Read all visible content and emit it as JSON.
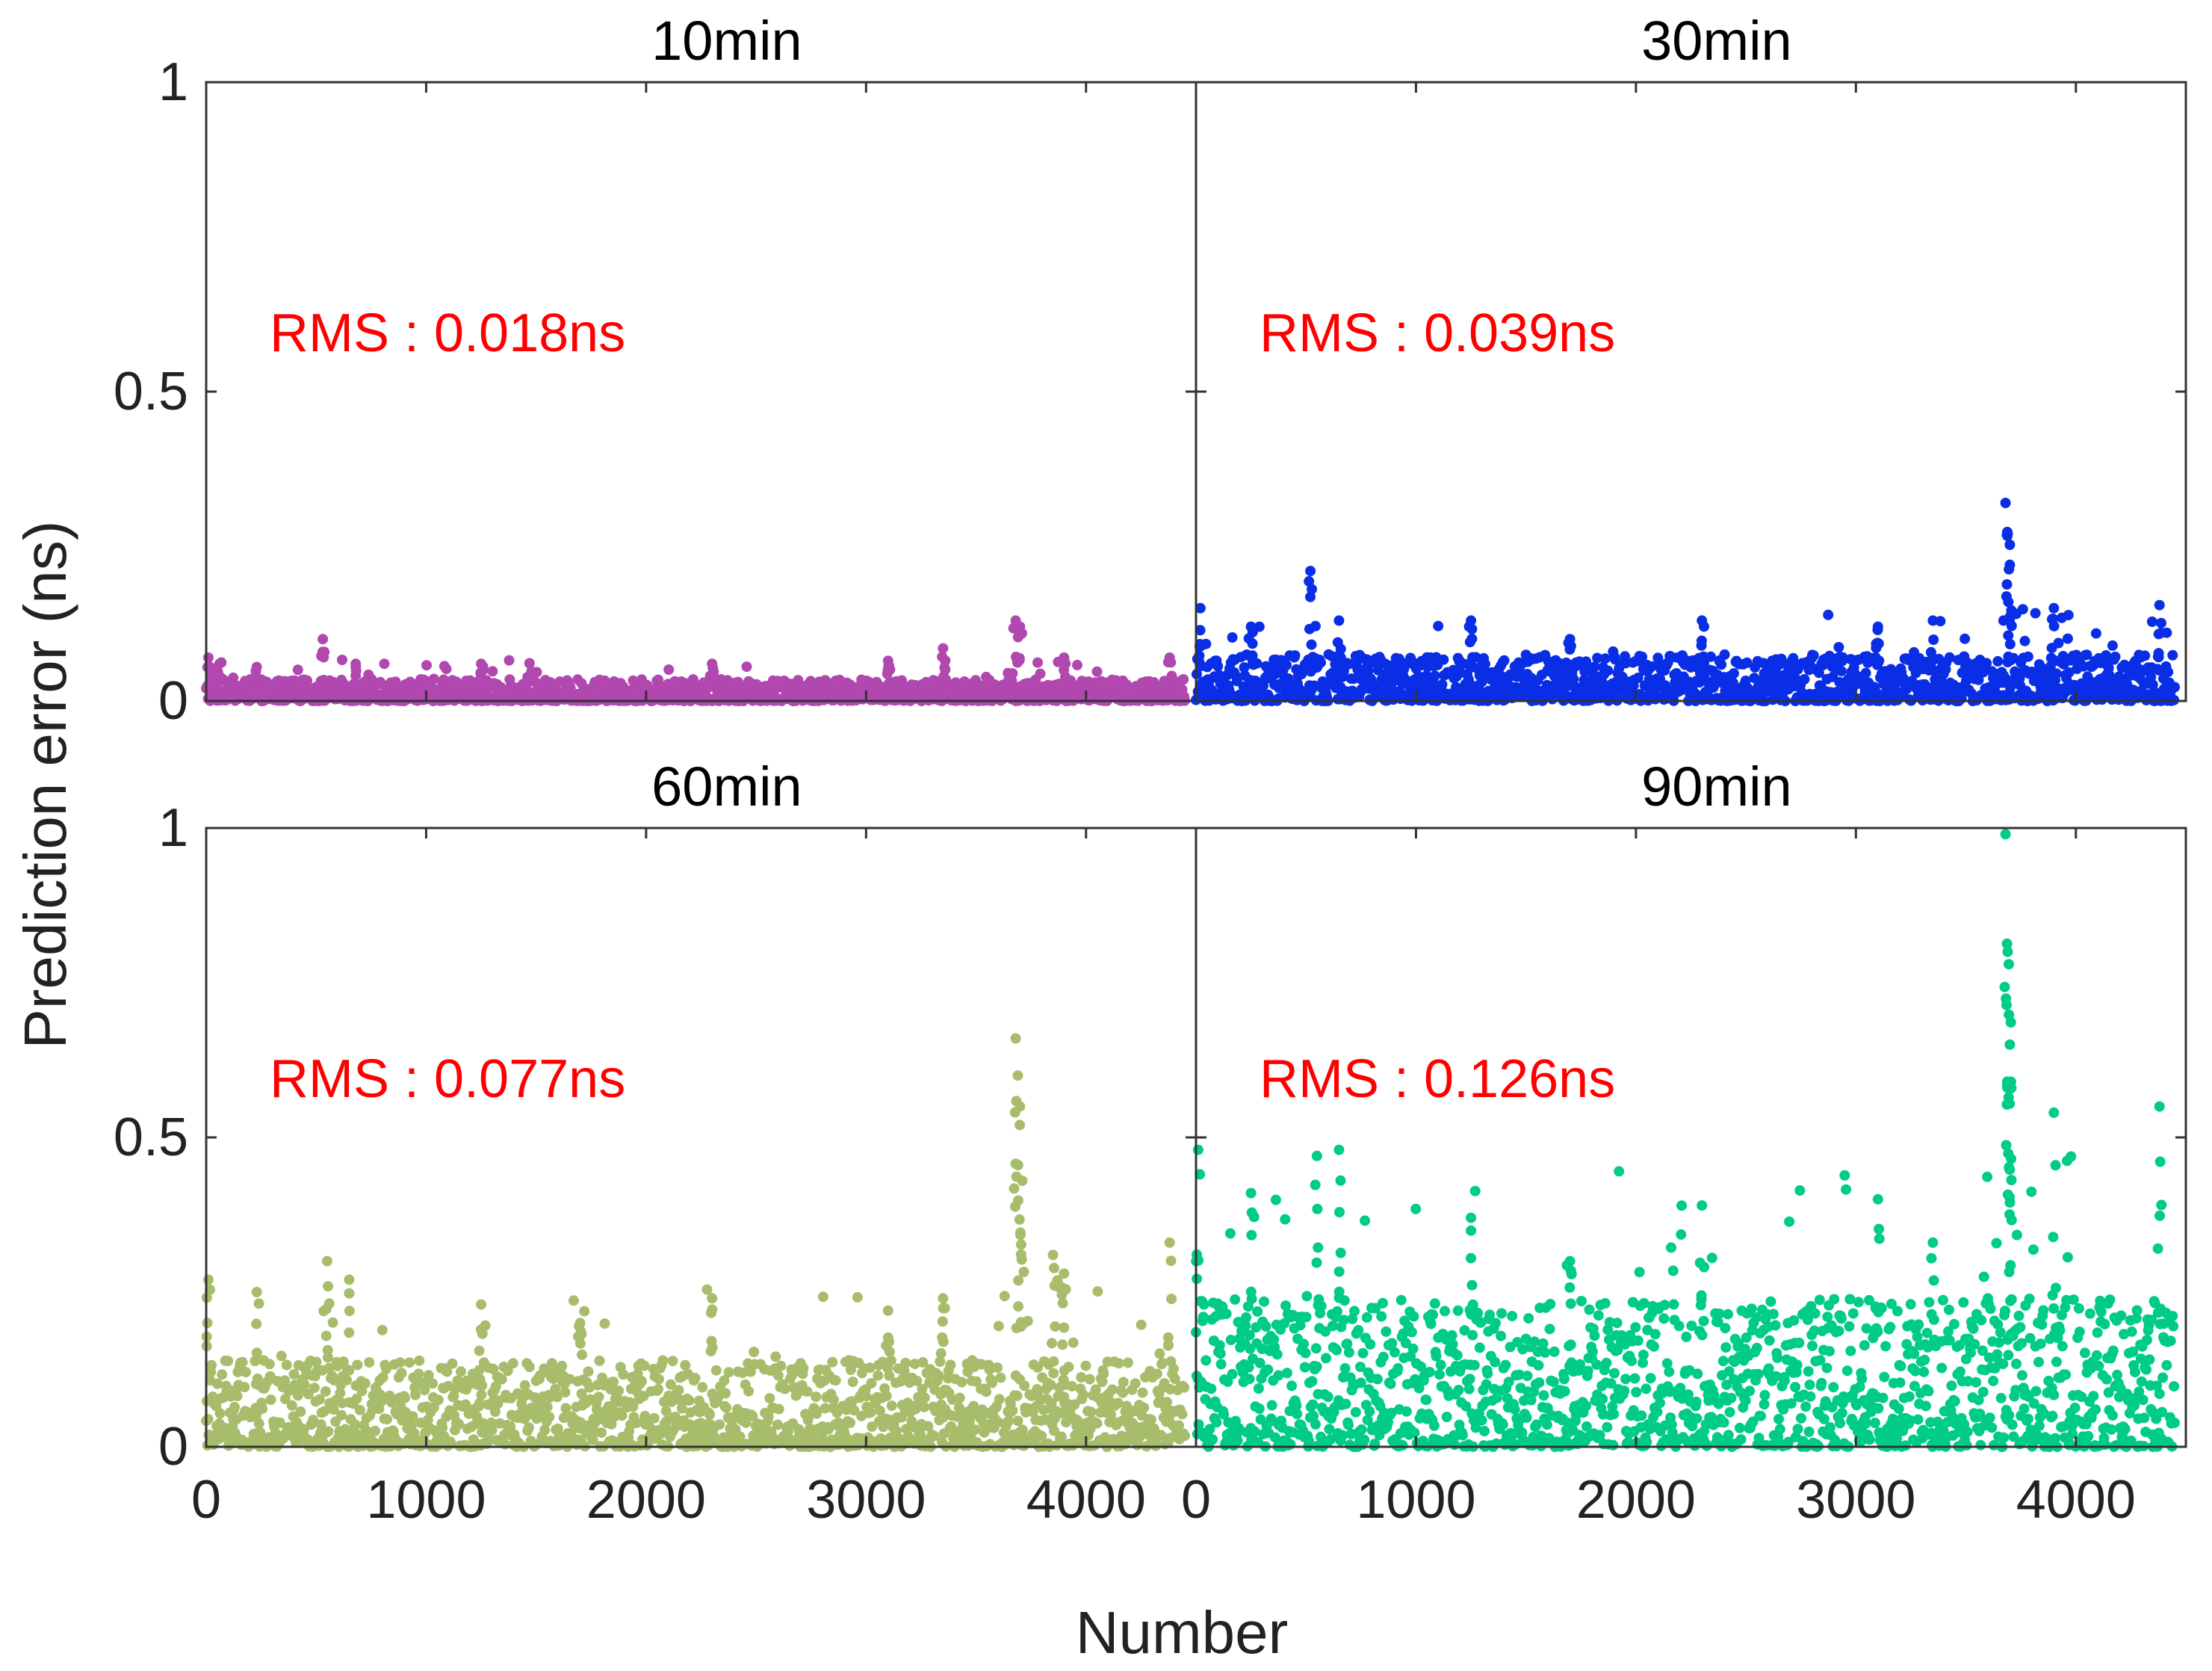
{
  "chart_data": [
    {
      "type": "scatter",
      "title": "10min",
      "rms_label": "RMS : 0.018ns",
      "color": "#b048b0",
      "xlim": [
        0,
        4500
      ],
      "ylim": [
        0,
        1
      ],
      "xticks": [
        "0",
        "1000",
        "2000",
        "3000",
        "4000"
      ],
      "yticks": [
        "0",
        "0.5",
        "1"
      ],
      "n_points": 4450,
      "baseline_max": 0.035,
      "spikes": [
        {
          "x": 10,
          "y": 0.07
        },
        {
          "x": 60,
          "y": 0.06
        },
        {
          "x": 230,
          "y": 0.055
        },
        {
          "x": 530,
          "y": 0.1
        },
        {
          "x": 680,
          "y": 0.06
        },
        {
          "x": 1250,
          "y": 0.06
        },
        {
          "x": 2300,
          "y": 0.06
        },
        {
          "x": 3100,
          "y": 0.065
        },
        {
          "x": 3350,
          "y": 0.085
        },
        {
          "x": 3680,
          "y": 0.13
        },
        {
          "x": 3700,
          "y": 0.12
        },
        {
          "x": 3900,
          "y": 0.07
        },
        {
          "x": 4380,
          "y": 0.07
        }
      ]
    },
    {
      "type": "scatter",
      "title": "30min",
      "rms_label": "RMS : 0.039ns",
      "color": "#0a2ee6",
      "xlim": [
        0,
        4500
      ],
      "ylim": [
        0,
        1
      ],
      "xticks": [
        "0",
        "1000",
        "2000",
        "3000",
        "4000"
      ],
      "yticks": [
        "0",
        "0.5",
        "1"
      ],
      "n_points": 4450,
      "baseline_max": 0.075,
      "spikes": [
        {
          "x": 20,
          "y": 0.15
        },
        {
          "x": 250,
          "y": 0.12
        },
        {
          "x": 520,
          "y": 0.21
        },
        {
          "x": 650,
          "y": 0.13
        },
        {
          "x": 1250,
          "y": 0.13
        },
        {
          "x": 1700,
          "y": 0.1
        },
        {
          "x": 2300,
          "y": 0.13
        },
        {
          "x": 3100,
          "y": 0.12
        },
        {
          "x": 3350,
          "y": 0.13
        },
        {
          "x": 3680,
          "y": 0.32
        },
        {
          "x": 3690,
          "y": 0.27
        },
        {
          "x": 3700,
          "y": 0.22
        },
        {
          "x": 3900,
          "y": 0.15
        },
        {
          "x": 4380,
          "y": 0.155
        }
      ]
    },
    {
      "type": "scatter",
      "title": "60min",
      "rms_label": "RMS : 0.077ns",
      "color": "#a8bd6c",
      "xlim": [
        0,
        4500
      ],
      "ylim": [
        0,
        1
      ],
      "xticks": [
        "0",
        "1000",
        "2000",
        "3000",
        "4000"
      ],
      "yticks": [
        "0",
        "0.5",
        "1"
      ],
      "n_points": 4450,
      "baseline_max": 0.14,
      "spikes": [
        {
          "x": 10,
          "y": 0.27
        },
        {
          "x": 230,
          "y": 0.25
        },
        {
          "x": 550,
          "y": 0.3
        },
        {
          "x": 650,
          "y": 0.27
        },
        {
          "x": 1250,
          "y": 0.23
        },
        {
          "x": 1700,
          "y": 0.2
        },
        {
          "x": 2300,
          "y": 0.24
        },
        {
          "x": 3100,
          "y": 0.22
        },
        {
          "x": 3350,
          "y": 0.24
        },
        {
          "x": 3680,
          "y": 0.66
        },
        {
          "x": 3690,
          "y": 0.6
        },
        {
          "x": 3700,
          "y": 0.55
        },
        {
          "x": 3710,
          "y": 0.43
        },
        {
          "x": 3850,
          "y": 0.31
        },
        {
          "x": 3900,
          "y": 0.28
        },
        {
          "x": 4380,
          "y": 0.33
        }
      ]
    },
    {
      "type": "scatter",
      "title": "90min",
      "rms_label": "RMS : 0.126ns",
      "color": "#00cc88",
      "xlim": [
        0,
        4500
      ],
      "ylim": [
        0,
        1
      ],
      "xticks": [
        "0",
        "1000",
        "2000",
        "3000",
        "4000"
      ],
      "yticks": [
        "0",
        "0.5",
        "1"
      ],
      "n_points": 4450,
      "baseline_max": 0.24,
      "spikes": [
        {
          "x": 10,
          "y": 0.48
        },
        {
          "x": 250,
          "y": 0.41
        },
        {
          "x": 550,
          "y": 0.47
        },
        {
          "x": 650,
          "y": 0.48
        },
        {
          "x": 1250,
          "y": 0.37
        },
        {
          "x": 1700,
          "y": 0.3
        },
        {
          "x": 2300,
          "y": 0.39
        },
        {
          "x": 3100,
          "y": 0.4
        },
        {
          "x": 3350,
          "y": 0.33
        },
        {
          "x": 3680,
          "y": 0.99
        },
        {
          "x": 3690,
          "y": 0.8
        },
        {
          "x": 3695,
          "y": 0.78
        },
        {
          "x": 3700,
          "y": 0.65
        },
        {
          "x": 3705,
          "y": 0.59
        },
        {
          "x": 3900,
          "y": 0.54
        },
        {
          "x": 4380,
          "y": 0.55
        }
      ]
    }
  ],
  "shared": {
    "xlabel": "Number",
    "ylabel": "Prediction error (ns)"
  }
}
